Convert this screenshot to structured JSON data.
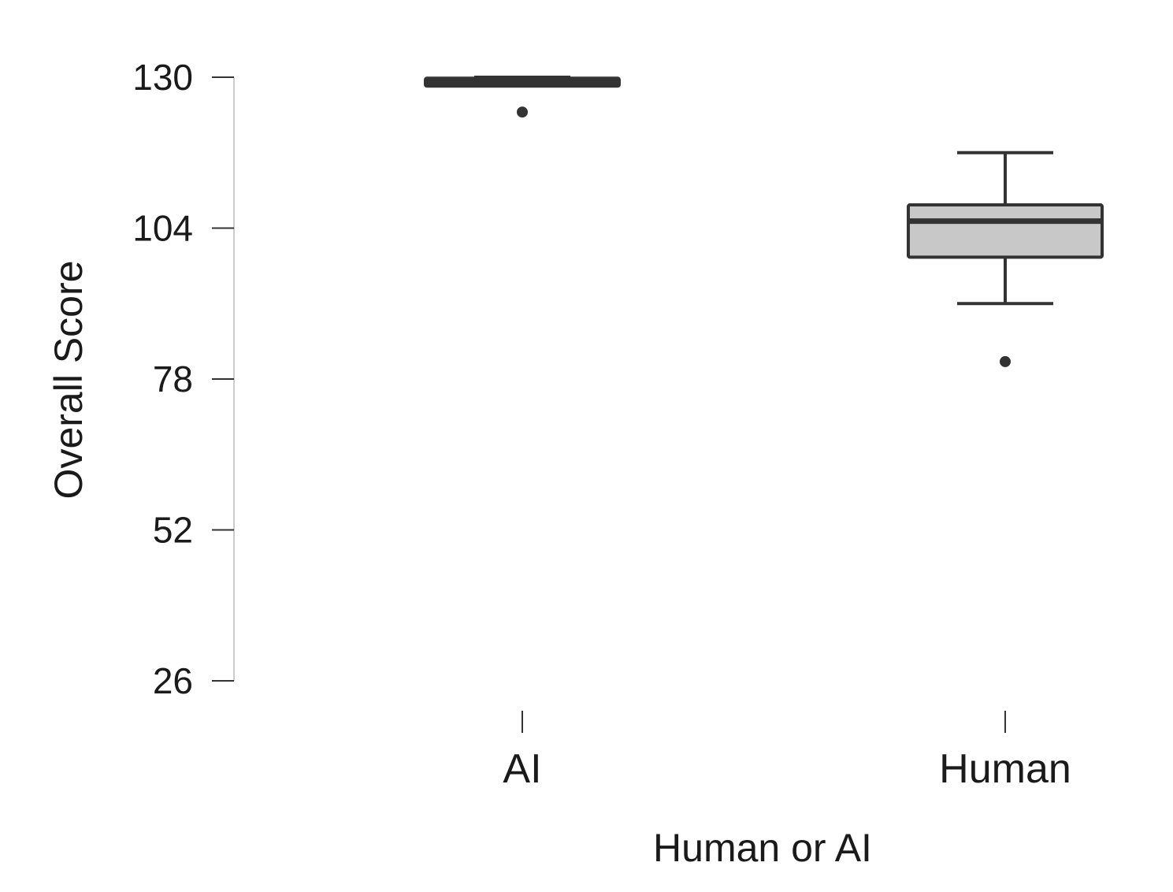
{
  "chart_data": {
    "type": "boxplot",
    "title": "",
    "xlabel": "Human or AI",
    "ylabel": "Overall Score",
    "ylim": [
      26,
      130
    ],
    "yticks": [
      26,
      52,
      78,
      104,
      130
    ],
    "ytick_labels": [
      "26",
      "52",
      "78",
      "104",
      "130"
    ],
    "categories": [
      "AI",
      "Human"
    ],
    "grid": false,
    "legend": "none",
    "boxes": [
      {
        "category": "AI",
        "whisker_low": 128.7,
        "q1": 128.7,
        "median": 129.1,
        "q3": 129.6,
        "whisker_high": 130,
        "outliers": [
          124
        ]
      },
      {
        "category": "Human",
        "whisker_low": 91,
        "q1": 99,
        "median": 105.2,
        "q3": 108,
        "whisker_high": 117,
        "outliers": [
          81
        ]
      }
    ],
    "colors": {
      "box_fill": "#c8c8c8",
      "ai_box_fill": "#333333",
      "stroke": "#333333",
      "axis": "#cccccc"
    }
  }
}
